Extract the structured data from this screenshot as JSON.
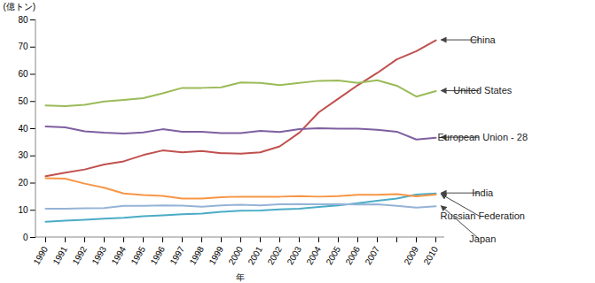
{
  "chart_data": {
    "type": "line",
    "x_label": "年",
    "y_label": "(億トン)",
    "categories": [
      "1990",
      "1991",
      "1992",
      "1993",
      "1994",
      "1995",
      "1996",
      "1997",
      "1998",
      "1999",
      "2000",
      "2001",
      "2002",
      "2003",
      "2004",
      "2005",
      "2006",
      "2007",
      null,
      "2009",
      "2010"
    ],
    "series": [
      {
        "name": "China",
        "color": "#c0504d",
        "values": [
          22.5,
          23.8,
          25,
          26.8,
          28,
          30.3,
          32,
          31.3,
          31.8,
          31,
          30.8,
          31.3,
          33.5,
          38.5,
          46,
          51,
          56,
          60.5,
          65.5,
          68.5,
          72.5
        ]
      },
      {
        "name": "United States",
        "color": "#9bbb59",
        "values": [
          48.5,
          48.3,
          48.8,
          50,
          50.6,
          51.2,
          53,
          55,
          55,
          55.2,
          57,
          56.8,
          56,
          56.8,
          57.6,
          57.7,
          56.8,
          57.8,
          55.8,
          51.8,
          53.8
        ]
      },
      {
        "name": "European Union - 28",
        "color": "#7f5fa0",
        "values": [
          40.8,
          40.5,
          39,
          38.5,
          38.2,
          38.6,
          39.8,
          38.9,
          38.9,
          38.4,
          38.4,
          39.2,
          38.8,
          39.8,
          40.2,
          40,
          40,
          39.6,
          38.9,
          36,
          36.7
        ]
      },
      {
        "name": "India",
        "color": "#4bacc6",
        "values": [
          5.8,
          6.2,
          6.5,
          6.9,
          7.2,
          7.8,
          8.1,
          8.5,
          8.8,
          9.4,
          9.8,
          9.9,
          10.3,
          10.6,
          11.2,
          11.8,
          12.6,
          13.5,
          14.3,
          15.8,
          16.2
        ]
      },
      {
        "name": "Russian Federation",
        "color": "#f79646",
        "values": [
          21.8,
          21.6,
          19.8,
          18.3,
          16.2,
          15.6,
          15.3,
          14.3,
          14.3,
          14.8,
          15,
          15,
          15,
          15.2,
          15,
          15.2,
          15.7,
          15.7,
          15.9,
          15.1,
          15.8
        ]
      },
      {
        "name": "Japan",
        "color": "#95b3d7",
        "values": [
          10.6,
          10.6,
          10.7,
          10.8,
          11.6,
          11.6,
          11.8,
          11.7,
          11.3,
          11.8,
          12,
          11.8,
          12.2,
          12.3,
          12.2,
          12.3,
          12.1,
          12.2,
          11.6,
          11,
          11.5
        ]
      }
    ],
    "ylim": [
      0,
      80
    ],
    "yticks": [
      0,
      10,
      20,
      30,
      40,
      50,
      60,
      70,
      80
    ],
    "grid": false
  }
}
